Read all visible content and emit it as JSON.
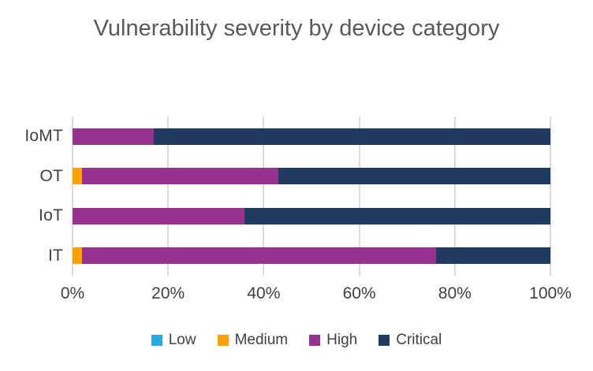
{
  "title": "Vulnerability severity by device category",
  "colors": {
    "background": "#ffffff",
    "title_text": "#595959",
    "axis_text": "#404040",
    "gridline": "#d9d9d9",
    "low": "#29abe2",
    "medium": "#ffa000",
    "high": "#96338e",
    "critical": "#213a60"
  },
  "chart_data": {
    "type": "bar",
    "orientation": "horizontal",
    "stacked": true,
    "title": "Vulnerability severity by device category",
    "categories": [
      "IoMT",
      "OT",
      "IoT",
      "IT"
    ],
    "series": [
      {
        "name": "Low",
        "color": "#29abe2",
        "values": [
          0,
          0,
          0,
          0
        ]
      },
      {
        "name": "Medium",
        "color": "#ffa000",
        "values": [
          0,
          2,
          0,
          2
        ]
      },
      {
        "name": "High",
        "color": "#96338e",
        "values": [
          17,
          41,
          36,
          74
        ]
      },
      {
        "name": "Critical",
        "color": "#213a60",
        "values": [
          83,
          57,
          64,
          24
        ]
      }
    ],
    "x_ticks": [
      "0%",
      "20%",
      "40%",
      "60%",
      "80%",
      "100%"
    ],
    "xlim": [
      0,
      100
    ],
    "unit": "%",
    "grid": true,
    "legend_position": "bottom",
    "legend": [
      "Low",
      "Medium",
      "High",
      "Critical"
    ]
  }
}
